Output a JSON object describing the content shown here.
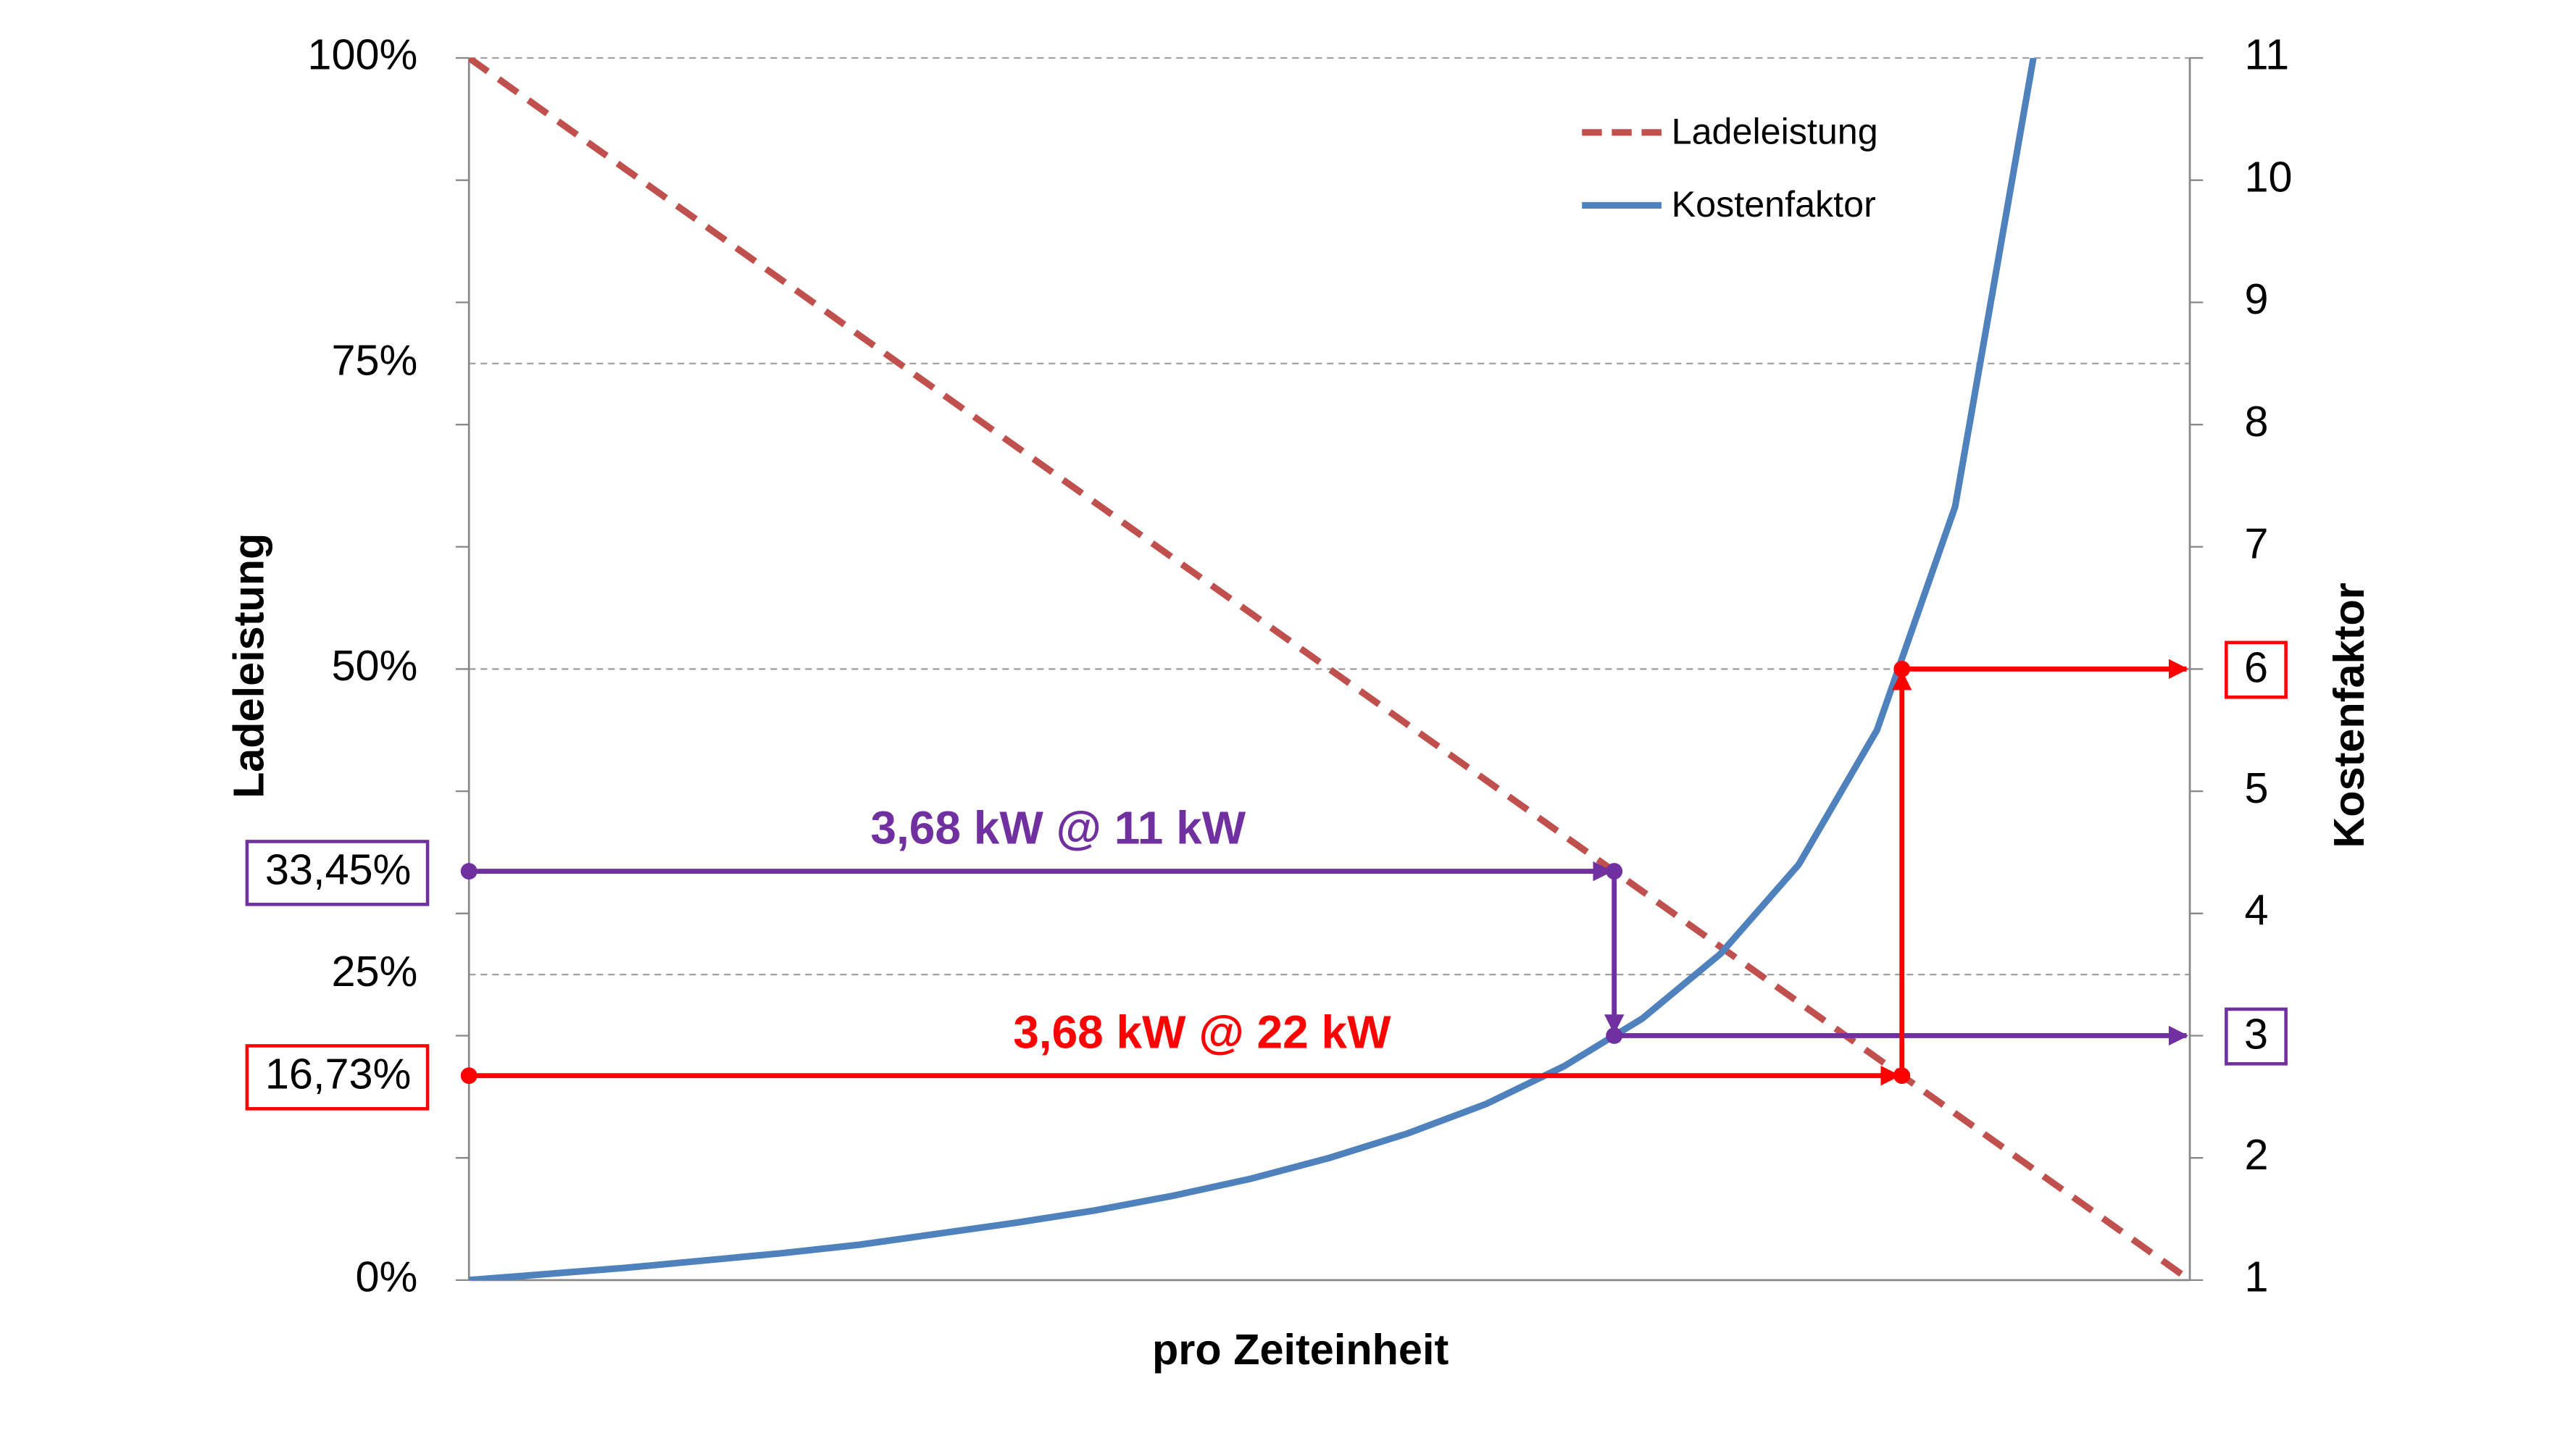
{
  "chart_data": {
    "type": "line",
    "xlabel": "pro Zeiteinheit",
    "ylabel": "Ladeleistung",
    "y2label": "Kostenfaktor",
    "x": [
      0,
      1,
      2,
      3,
      4,
      5,
      6,
      7,
      8,
      9,
      10,
      11,
      12,
      13,
      14,
      15,
      16,
      17,
      18,
      19,
      20,
      21,
      22
    ],
    "xlim": [
      0,
      22
    ],
    "series": [
      {
        "name": "Ladeleistung",
        "color": "#c0504d",
        "dashed": true,
        "axis": "y",
        "values": [
          100,
          95.45,
          90.91,
          86.36,
          81.82,
          77.27,
          72.73,
          68.18,
          63.64,
          59.09,
          54.55,
          50,
          45.45,
          40.91,
          36.36,
          31.82,
          27.27,
          22.73,
          18.18,
          13.64,
          9.09,
          4.55,
          0
        ]
      },
      {
        "name": "Kostenfaktor",
        "color": "#4f81bd",
        "dashed": false,
        "axis": "y2",
        "values": [
          1,
          1.05,
          1.1,
          1.16,
          1.22,
          1.29,
          1.38,
          1.47,
          1.57,
          1.69,
          1.83,
          2,
          2.2,
          2.44,
          2.75,
          3.14,
          3.67,
          4.4,
          5.5,
          7.33,
          11,
          null,
          null
        ]
      }
    ],
    "ylim": [
      0,
      100
    ],
    "yticks": [
      {
        "value": 0,
        "label": "0%"
      },
      {
        "value": 25,
        "label": "25%"
      },
      {
        "value": 50,
        "label": "50%"
      },
      {
        "value": 75,
        "label": "75%"
      },
      {
        "value": 100,
        "label": "100%"
      }
    ],
    "y2lim": [
      1,
      11
    ],
    "y2ticks": [
      1,
      2,
      3,
      4,
      5,
      6,
      7,
      8,
      9,
      10,
      11
    ],
    "grid": true,
    "legend": "top",
    "annotations": [
      {
        "text": "3,68 kW @ 11 kW",
        "color": "#7030a0",
        "level": 33.45,
        "level_label": "33,45%",
        "factor": 3,
        "factor_label": "3"
      },
      {
        "text": "3,68 kW @ 22 kW",
        "color": "#ff0000",
        "level": 16.73,
        "level_label": "16,73%",
        "factor": 6,
        "factor_label": "6"
      }
    ]
  }
}
